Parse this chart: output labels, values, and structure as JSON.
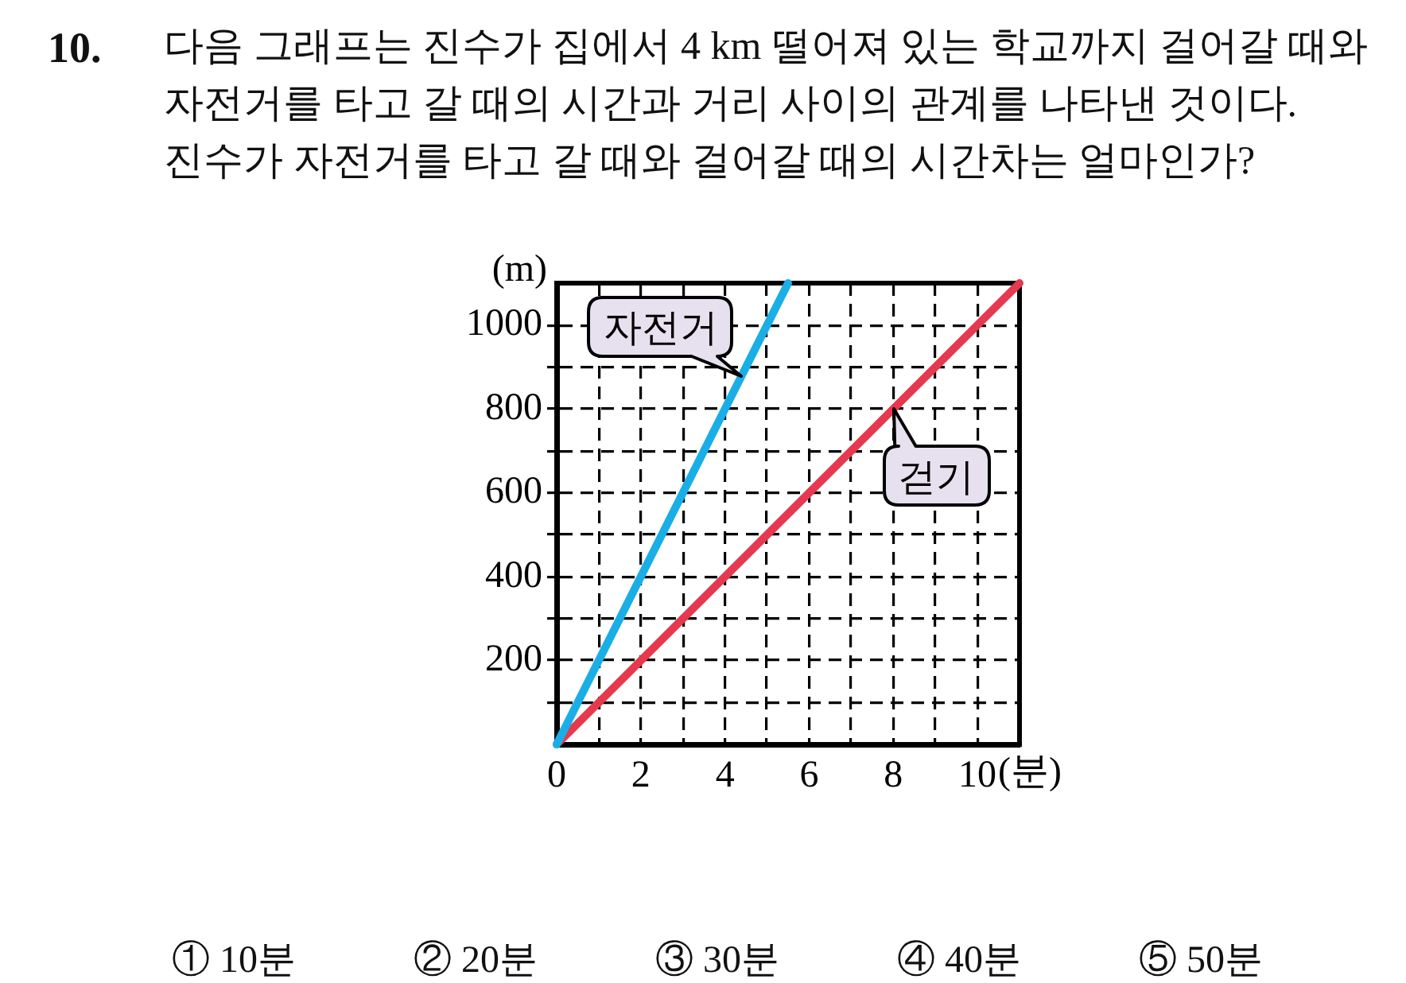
{
  "chart_data": {
    "type": "line",
    "title": "10.",
    "subtitle": "다음 그래프는 진수가 집에서 4 km 떨어져 있는 학교까지 걸어갈 때와 자전거를 타고 갈 때의 시간과 거리 사이의 관계를 나타낸 것이다. 진수가 자전거를 타고 갈 때와 걸어갈 때의 시간차는 얼마인가?",
    "xlabel": "(분)",
    "ylabel": "(m)",
    "xlim": [
      0,
      11
    ],
    "ylim": [
      0,
      1100
    ],
    "xticks": [
      0,
      {
        "value": 1,
        "label": null
      },
      2,
      {
        "value": 3,
        "label": null
      },
      4,
      {
        "value": 5,
        "label": null
      },
      6,
      {
        "value": 7,
        "label": null
      },
      8,
      {
        "value": 9,
        "label": null
      },
      10
    ],
    "yticks": [
      {
        "value": 100,
        "label": null
      },
      200,
      {
        "value": 300,
        "label": null
      },
      400,
      {
        "value": 500,
        "label": null
      },
      600,
      {
        "value": 700,
        "label": null
      },
      800,
      {
        "value": 900,
        "label": null
      },
      1000
    ],
    "grid": true,
    "marker": "none",
    "line_style": "solid",
    "series": [
      {
        "name": "자전거",
        "color": "#1aaee6",
        "x": [
          0,
          5.5
        ],
        "values": [
          0,
          1100
        ]
      },
      {
        "name": "걷기",
        "color": "#e5394f",
        "x": [
          0,
          11
        ],
        "values": [
          0,
          1100
        ]
      }
    ],
    "annotations": [
      "① 10분",
      "② 20분",
      "③ 30분",
      "④ 40분",
      "⑤ 50분"
    ]
  }
}
